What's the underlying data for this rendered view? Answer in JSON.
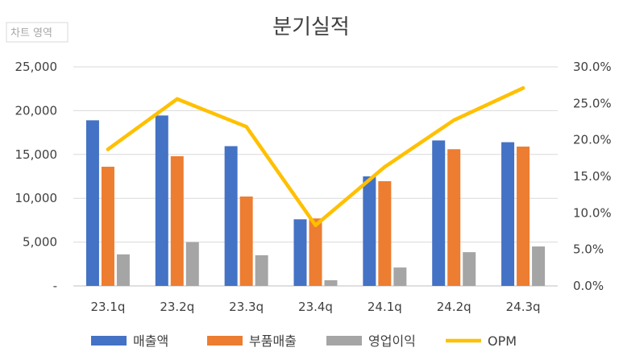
{
  "chart_data": {
    "type": "bar",
    "title": "분기실적",
    "area_tag": "차트 영역",
    "categories": [
      "23.1q",
      "23.2q",
      "23.3q",
      "23.4q",
      "24.1q",
      "24.2q",
      "24.3q"
    ],
    "series": [
      {
        "name": "매출액",
        "type": "bar",
        "axis": "left",
        "color": "#4472c4",
        "values": [
          18900,
          19450,
          15950,
          7600,
          12500,
          16600,
          16400
        ]
      },
      {
        "name": "부품매출",
        "type": "bar",
        "axis": "left",
        "color": "#ed7d31",
        "values": [
          13600,
          14800,
          10200,
          7700,
          11950,
          15600,
          15900
        ]
      },
      {
        "name": "영업이익",
        "type": "bar",
        "axis": "left",
        "color": "#a5a5a5",
        "values": [
          3600,
          5000,
          3500,
          650,
          2100,
          3850,
          4500
        ]
      },
      {
        "name": "OPM",
        "type": "line",
        "axis": "right",
        "color": "#ffc000",
        "values": [
          18.7,
          25.6,
          21.8,
          8.3,
          16.3,
          22.7,
          27.1
        ]
      }
    ],
    "y_left": {
      "ticks": [
        "-",
        "5,000",
        "10,000",
        "15,000",
        "20,000",
        "25,000"
      ],
      "lim": [
        0,
        25000
      ]
    },
    "y_right": {
      "ticks": [
        "0.0%",
        "5.0%",
        "10.0%",
        "15.0%",
        "20.0%",
        "25.0%",
        "30.0%"
      ],
      "lim": [
        0,
        30
      ]
    },
    "grid": true,
    "legend_position": "bottom"
  }
}
